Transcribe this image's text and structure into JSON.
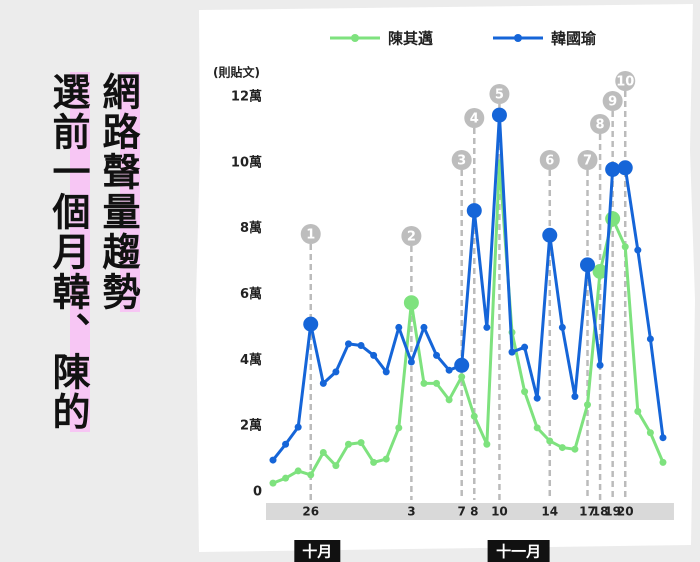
{
  "title_lines": [
    "網路聲量趨勢",
    "選前一個月韓、陳的"
  ],
  "chart_data": {
    "type": "line",
    "y_unit_label": "(則貼文)",
    "categories": [
      null,
      null,
      null,
      "26",
      null,
      null,
      null,
      null,
      null,
      null,
      null,
      "3",
      null,
      null,
      null,
      "7",
      "8",
      null,
      "10",
      null,
      null,
      null,
      "14",
      null,
      null,
      "17",
      "18",
      "19",
      "20",
      null,
      null,
      null
    ],
    "months": [
      {
        "label": "十月",
        "from": 0,
        "to": 8
      },
      {
        "label": "十一月",
        "from": 9,
        "to": 31
      }
    ],
    "ylim": [
      0,
      12
    ],
    "yticks": [
      0,
      {
        "value": 2,
        "label": "2萬"
      },
      {
        "value": 4,
        "label": "4萬"
      },
      {
        "value": 6,
        "label": "6萬"
      },
      {
        "value": 8,
        "label": "8萬"
      },
      {
        "value": 10,
        "label": "10萬"
      },
      {
        "value": 12,
        "label": "12萬"
      }
    ],
    "series": [
      {
        "name": "陳其邁",
        "color": "#7ee27e",
        "highlights": [
          "3",
          "18",
          "19"
        ],
        "values": [
          0.27,
          0.42,
          0.64,
          0.52,
          1.2,
          0.8,
          1.45,
          1.5,
          0.9,
          1.0,
          1.95,
          5.75,
          3.3,
          3.3,
          2.8,
          3.5,
          2.3,
          1.45,
          10.0,
          4.85,
          3.05,
          1.95,
          1.55,
          1.35,
          1.3,
          2.65,
          6.7,
          8.3,
          7.45,
          2.45,
          1.8,
          0.9
        ]
      },
      {
        "name": "韓國瑜",
        "color": "#1565d8",
        "highlights": [
          "26",
          "7",
          "8",
          "10",
          "14",
          "17",
          "19",
          "20"
        ],
        "values": [
          0.97,
          1.45,
          1.97,
          5.1,
          3.3,
          3.65,
          4.5,
          4.45,
          4.15,
          3.65,
          5.0,
          3.95,
          5.0,
          4.15,
          3.7,
          3.85,
          8.55,
          5.0,
          11.45,
          4.25,
          4.4,
          2.85,
          7.8,
          5.0,
          2.9,
          6.9,
          3.85,
          9.8,
          9.85,
          7.35,
          4.65,
          1.65
        ]
      }
    ],
    "events": [
      {
        "label": "1",
        "at": "26"
      },
      {
        "label": "2",
        "at": "3"
      },
      {
        "label": "3",
        "at": "7"
      },
      {
        "label": "4",
        "at": "8"
      },
      {
        "label": "5",
        "at": "10"
      },
      {
        "label": "6",
        "at": "14"
      },
      {
        "label": "7",
        "at": "17"
      },
      {
        "label": "8",
        "at": "18"
      },
      {
        "label": "9",
        "at": "19"
      },
      {
        "label": "10",
        "at": "20"
      }
    ]
  }
}
